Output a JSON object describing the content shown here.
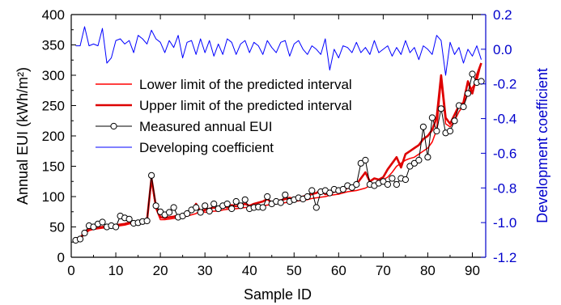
{
  "chart_data": {
    "type": "line",
    "xlabel": "Sample ID",
    "ylabel_left": "Annual EUI (kWh/m²)",
    "ylabel_right": "Development coefficient",
    "xlim": [
      0,
      93
    ],
    "ylim_left": [
      0,
      400
    ],
    "ylim_right": [
      -1.2,
      0.2
    ],
    "x_ticks": [
      0,
      10,
      20,
      30,
      40,
      50,
      60,
      70,
      80,
      90
    ],
    "y_ticks_left": [
      0,
      50,
      100,
      150,
      200,
      250,
      300,
      350,
      400
    ],
    "y_ticks_right": [
      0.2,
      0.0,
      -0.2,
      -0.4,
      -0.6,
      -0.8,
      -1.0,
      -1.2
    ],
    "y_tick_labels_right": [
      "0.2",
      "0.0",
      "-0.2",
      "-0.4",
      "-0.6",
      "-0.8",
      "-1.0",
      "-1.2"
    ],
    "grid": false,
    "legend_position": "upper-left",
    "colors": {
      "lower": "#ff0000",
      "upper": "#dd0000",
      "measured_line": "#000000",
      "measured_marker_fill": "#ffffff",
      "developing": "#0000ff",
      "right_axis": "#0000cc"
    },
    "x": [
      1,
      2,
      3,
      4,
      5,
      6,
      7,
      8,
      9,
      10,
      11,
      12,
      13,
      14,
      15,
      16,
      17,
      18,
      19,
      20,
      21,
      22,
      23,
      24,
      25,
      26,
      27,
      28,
      29,
      30,
      31,
      32,
      33,
      34,
      35,
      36,
      37,
      38,
      39,
      40,
      41,
      42,
      43,
      44,
      45,
      46,
      47,
      48,
      49,
      50,
      51,
      52,
      53,
      54,
      55,
      56,
      57,
      58,
      59,
      60,
      61,
      62,
      63,
      64,
      65,
      66,
      67,
      68,
      69,
      70,
      71,
      72,
      73,
      74,
      75,
      76,
      77,
      78,
      79,
      80,
      81,
      82,
      83,
      84,
      85,
      86,
      87,
      88,
      89,
      90,
      91,
      92
    ],
    "series": [
      {
        "name": "Lower limit of the predicted interval",
        "axis": "left",
        "values": [
          29,
          30,
          38,
          44,
          46,
          47,
          48,
          49,
          50,
          51,
          52,
          53,
          55,
          56,
          57,
          58,
          59,
          125,
          80,
          62,
          62,
          63,
          64,
          65,
          66,
          68,
          70,
          72,
          78,
          74,
          75,
          76,
          76,
          78,
          79,
          80,
          80,
          81,
          82,
          82,
          83,
          84,
          85,
          86,
          87,
          88,
          89,
          90,
          91,
          92,
          93,
          94,
          95,
          97,
          98,
          99,
          100,
          102,
          103,
          104,
          106,
          108,
          109,
          110,
          112,
          114,
          118,
          121,
          124,
          128,
          132,
          140,
          150,
          155,
          160,
          163,
          165,
          170,
          175,
          180,
          190,
          210,
          290,
          220,
          215,
          225,
          240,
          250,
          270,
          280,
          290,
          320
        ]
      },
      {
        "name": "Upper limit of the predicted interval",
        "axis": "left",
        "values": [
          31,
          32,
          41,
          46,
          48,
          49,
          50,
          51,
          52,
          53,
          54,
          55,
          57,
          58,
          59,
          60,
          61,
          130,
          84,
          66,
          65,
          66,
          67,
          69,
          70,
          72,
          75,
          88,
          75,
          78,
          80,
          82,
          80,
          84,
          82,
          86,
          84,
          86,
          88,
          85,
          88,
          90,
          92,
          96,
          90,
          92,
          94,
          96,
          98,
          96,
          98,
          100,
          102,
          104,
          106,
          110,
          104,
          106,
          108,
          110,
          112,
          114,
          116,
          120,
          130,
          140,
          125,
          130,
          128,
          132,
          145,
          155,
          165,
          148,
          170,
          175,
          180,
          185,
          195,
          200,
          210,
          230,
          300,
          230,
          220,
          235,
          250,
          255,
          290,
          270,
          300,
          320
        ]
      },
      {
        "name": "Measured annual EUI",
        "axis": "left",
        "values": [
          28,
          30,
          40,
          52,
          50,
          55,
          58,
          50,
          52,
          50,
          68,
          65,
          63,
          56,
          57,
          59,
          60,
          135,
          85,
          75,
          70,
          74,
          82,
          66,
          68,
          72,
          78,
          82,
          74,
          85,
          76,
          88,
          80,
          85,
          88,
          80,
          92,
          85,
          95,
          80,
          82,
          83,
          82,
          100,
          88,
          92,
          90,
          103,
          92,
          95,
          98,
          96,
          100,
          110,
          82,
          108,
          110,
          106,
          112,
          110,
          112,
          118,
          115,
          120,
          155,
          160,
          120,
          118,
          122,
          125,
          120,
          130,
          120,
          130,
          128,
          150,
          155,
          160,
          215,
          165,
          230,
          208,
          245,
          205,
          208,
          225,
          250,
          248,
          270,
          302,
          288,
          290
        ]
      },
      {
        "name": "Developing coefficient",
        "axis": "right",
        "values": [
          0.02,
          0.02,
          0.13,
          0.02,
          0.03,
          0.02,
          0.12,
          -0.08,
          -0.05,
          0.05,
          0.06,
          0.03,
          0.05,
          -0.02,
          0.08,
          0.06,
          0.03,
          0.11,
          0.06,
          0.04,
          -0.02,
          0.05,
          0.01,
          0.08,
          -0.05,
          0.04,
          0.05,
          -0.03,
          0.06,
          -0.02,
          0.05,
          -0.04,
          0.03,
          -0.03,
          0.06,
          0.04,
          -0.03,
          0.03,
          0.05,
          -0.02,
          0.04,
          0.02,
          -0.03,
          0.05,
          0.01,
          -0.02,
          0.04,
          0.05,
          -0.04,
          0.03,
          0.05,
          0.0,
          -0.03,
          0.02,
          0.0,
          -0.03,
          0.06,
          -0.12,
          0.0,
          -0.05,
          0.02,
          0.01,
          -0.02,
          0.04,
          -0.02,
          0.01,
          -0.03,
          0.05,
          -0.02,
          0.0,
          0.02,
          -0.04,
          0.01,
          -0.03,
          0.05,
          -0.02,
          0.01,
          -0.06,
          0.02,
          0.0,
          -0.03,
          0.08,
          0.05,
          -0.15,
          0.04,
          -0.03,
          0.01,
          -0.08,
          0.0,
          -0.04,
          0.02,
          -0.06
        ]
      }
    ]
  }
}
